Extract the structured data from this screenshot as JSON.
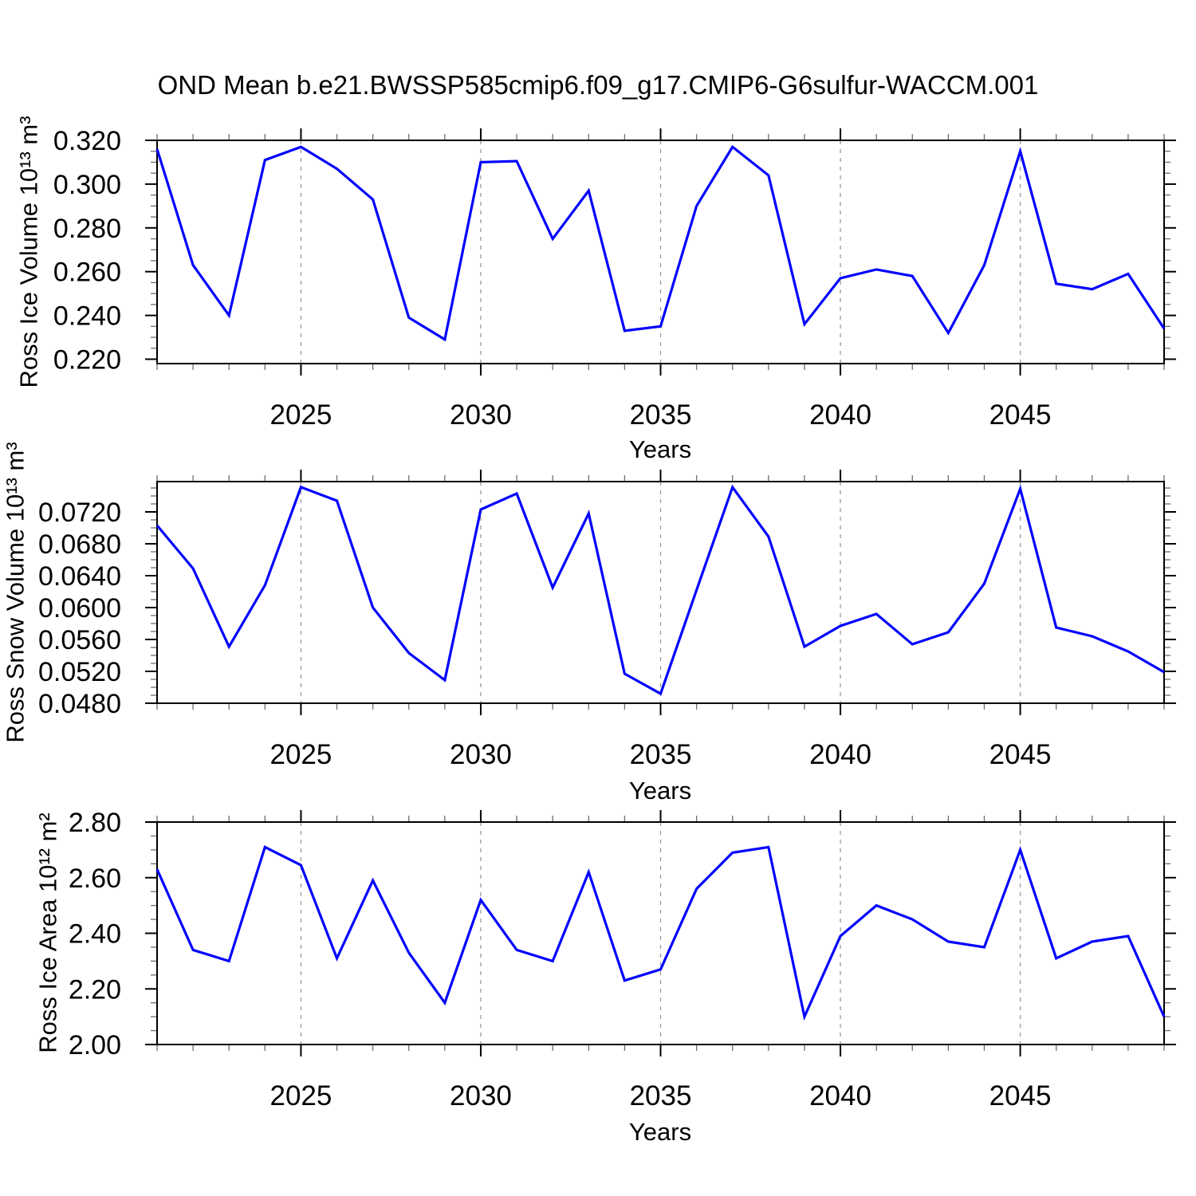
{
  "title": "OND Mean b.e21.BWSSP585cmip6.f09_g17.CMIP6-G6sulfur-WACCM.001",
  "line_color": "#0000ff",
  "chart_data": [
    {
      "type": "line",
      "name": "ross-ice-volume",
      "ylabel": "Ross Ice Volume 10¹³ m³",
      "xlabel": "Years",
      "x": [
        2021,
        2022,
        2023,
        2024,
        2025,
        2026,
        2027,
        2028,
        2029,
        2030,
        2031,
        2032,
        2033,
        2034,
        2035,
        2036,
        2037,
        2038,
        2039,
        2040,
        2041,
        2042,
        2043,
        2044,
        2045,
        2046,
        2047,
        2048,
        2049
      ],
      "values": [
        0.316,
        0.263,
        0.24,
        0.311,
        0.317,
        0.307,
        0.293,
        0.239,
        0.229,
        0.31,
        0.3105,
        0.275,
        0.297,
        0.233,
        0.235,
        0.29,
        0.317,
        0.304,
        0.236,
        0.257,
        0.261,
        0.258,
        0.232,
        0.263,
        0.315,
        0.2545,
        0.252,
        0.259,
        0.234
      ],
      "xlim": [
        2021,
        2049
      ],
      "ylim": [
        0.218,
        0.32
      ],
      "xticks_major": [
        2025,
        2030,
        2035,
        2040,
        2045
      ],
      "xtick_minor_step": 1,
      "ytick_values": [
        0.22,
        0.24,
        0.26,
        0.28,
        0.3,
        0.32
      ],
      "ytick_labels": [
        "0.220",
        "0.240",
        "0.260",
        "0.280",
        "0.300",
        "0.320"
      ],
      "ytick_minor_step": 0.005,
      "grid": "vertical-dashed-at-major-xticks",
      "legend": "none"
    },
    {
      "type": "line",
      "name": "ross-snow-volume",
      "ylabel": "Ross Snow Volume 10¹³ m³",
      "xlabel": "Years",
      "x": [
        2021,
        2022,
        2023,
        2024,
        2025,
        2026,
        2027,
        2028,
        2029,
        2030,
        2031,
        2032,
        2033,
        2034,
        2035,
        2036,
        2037,
        2038,
        2039,
        2040,
        2041,
        2042,
        2043,
        2044,
        2045,
        2046,
        2047,
        2048,
        2049
      ],
      "values": [
        0.0703,
        0.0649,
        0.0551,
        0.0628,
        0.0751,
        0.0734,
        0.06,
        0.0543,
        0.0509,
        0.0723,
        0.0743,
        0.0625,
        0.0718,
        0.0517,
        0.0492,
        0.0622,
        0.0751,
        0.0689,
        0.0551,
        0.0577,
        0.0592,
        0.0554,
        0.0569,
        0.063,
        0.0749,
        0.0575,
        0.0564,
        0.0545,
        0.0519
      ],
      "xlim": [
        2021,
        2049
      ],
      "ylim": [
        0.048,
        0.0758
      ],
      "xticks_major": [
        2025,
        2030,
        2035,
        2040,
        2045
      ],
      "xtick_minor_step": 1,
      "ytick_values": [
        0.048,
        0.052,
        0.056,
        0.06,
        0.064,
        0.068,
        0.072
      ],
      "ytick_labels": [
        "0.0480",
        "0.0520",
        "0.0560",
        "0.0600",
        "0.0640",
        "0.0680",
        "0.0720"
      ],
      "ytick_minor_step": 0.001,
      "grid": "vertical-dashed-at-major-xticks",
      "legend": "none"
    },
    {
      "type": "line",
      "name": "ross-ice-area",
      "ylabel": "Ross Ice Area 10¹² m²",
      "xlabel": "Years",
      "x": [
        2021,
        2022,
        2023,
        2024,
        2025,
        2026,
        2027,
        2028,
        2029,
        2030,
        2031,
        2032,
        2033,
        2034,
        2035,
        2036,
        2037,
        2038,
        2039,
        2040,
        2041,
        2042,
        2043,
        2044,
        2045,
        2046,
        2047,
        2048,
        2049
      ],
      "values": [
        2.63,
        2.34,
        2.3,
        2.71,
        2.645,
        2.31,
        2.59,
        2.33,
        2.15,
        2.52,
        2.34,
        2.3,
        2.62,
        2.23,
        2.27,
        2.56,
        2.69,
        2.71,
        2.1,
        2.39,
        2.5,
        2.45,
        2.37,
        2.35,
        2.7,
        2.31,
        2.37,
        2.39,
        2.1
      ],
      "xlim": [
        2021,
        2049
      ],
      "ylim": [
        2.0,
        2.8
      ],
      "xticks_major": [
        2025,
        2030,
        2035,
        2040,
        2045
      ],
      "xtick_minor_step": 1,
      "ytick_values": [
        2.0,
        2.2,
        2.4,
        2.6,
        2.8
      ],
      "ytick_labels": [
        "2.00",
        "2.20",
        "2.40",
        "2.60",
        "2.80"
      ],
      "ytick_minor_step": 0.05,
      "grid": "vertical-dashed-at-major-xticks",
      "legend": "none"
    }
  ]
}
